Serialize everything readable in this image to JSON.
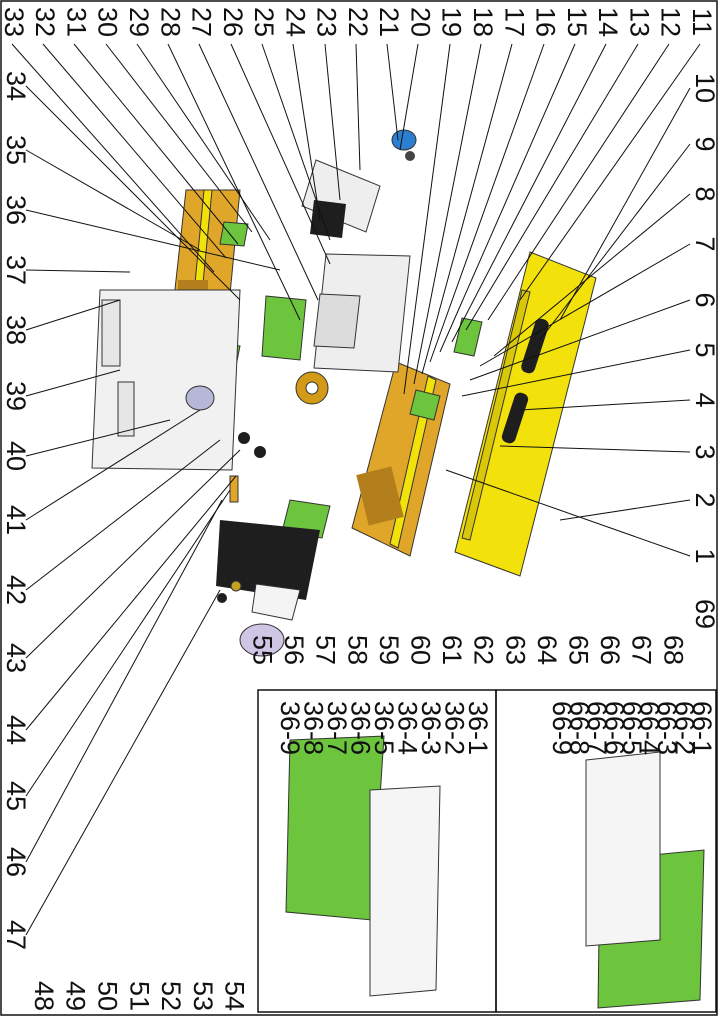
{
  "diagram": {
    "colors": {
      "yellow": "#f2e10a",
      "orange": "#e0a62a",
      "green": "#6cc53c",
      "blue": "#2b7fd1",
      "grey": "#cfcfcf",
      "black": "#1e1e1e"
    },
    "top_row_labels": [
      "11",
      "12",
      "13",
      "14",
      "15",
      "16",
      "17",
      "18",
      "19",
      "20",
      "21",
      "22",
      "23",
      "24",
      "25",
      "26",
      "27",
      "28",
      "29",
      "30",
      "31",
      "32",
      "33"
    ],
    "right_col_labels": [
      "10",
      "9",
      "8",
      "7",
      "6",
      "5",
      "4",
      "3",
      "2",
      "1"
    ],
    "left_col_labels": [
      "34",
      "35",
      "36",
      "37",
      "38",
      "39",
      "40",
      "41",
      "42",
      "43",
      "44",
      "45",
      "46",
      "47"
    ],
    "bottom_rows": {
      "outer": [
        "48",
        "49",
        "50",
        "51",
        "52",
        "53",
        "54"
      ],
      "middle": [
        "69",
        "68",
        "67",
        "66",
        "65",
        "64",
        "63",
        "62",
        "61",
        "60",
        "59",
        "58",
        "57",
        "56",
        "55"
      ]
    },
    "inset_66": [
      "66-1",
      "66-2",
      "66-3",
      "66-4",
      "66-5",
      "66-6",
      "66-7",
      "66-8",
      "66-9"
    ],
    "inset_36": [
      "36-1",
      "36-2",
      "36-3",
      "36-4",
      "36-5",
      "36-6",
      "36-7",
      "36-8",
      "36-9"
    ]
  }
}
